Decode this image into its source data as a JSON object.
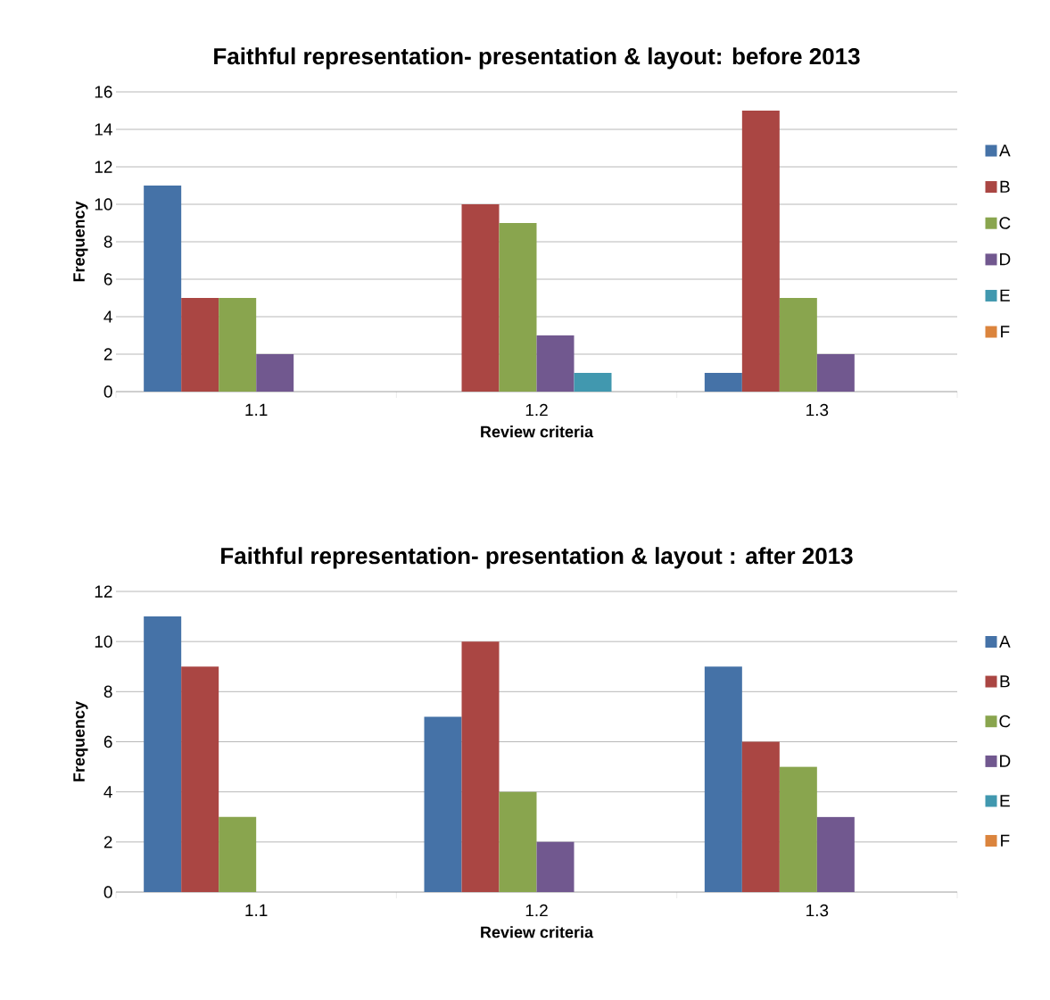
{
  "chart_data": [
    {
      "type": "bar",
      "title": "Faithful representation- presentation & layout: before 2013",
      "xlabel": "Review criteria",
      "ylabel": "Frequency",
      "categories": [
        "1.1",
        "1.2",
        "1.3"
      ],
      "ylim": [
        0,
        16
      ],
      "yticks": [
        0,
        2,
        4,
        6,
        8,
        10,
        12,
        14,
        16
      ],
      "grid": "y",
      "legend": "right",
      "series": [
        {
          "name": "A",
          "color": "#4572a7",
          "values": [
            11,
            0,
            1
          ]
        },
        {
          "name": "B",
          "color": "#aa4643",
          "values": [
            5,
            10,
            15
          ]
        },
        {
          "name": "C",
          "color": "#89a54e",
          "values": [
            5,
            9,
            5
          ]
        },
        {
          "name": "D",
          "color": "#71588f",
          "values": [
            2,
            3,
            2
          ]
        },
        {
          "name": "E",
          "color": "#4198af",
          "values": [
            0,
            1,
            0
          ]
        },
        {
          "name": "F",
          "color": "#db843d",
          "values": [
            0,
            0,
            0
          ]
        }
      ]
    },
    {
      "type": "bar",
      "title": "Faithful representation- presentation & layout : after 2013",
      "xlabel": "Review criteria",
      "ylabel": "Frequency",
      "categories": [
        "1.1",
        "1.2",
        "1.3"
      ],
      "ylim": [
        0,
        12
      ],
      "yticks": [
        0,
        2,
        4,
        6,
        8,
        10,
        12
      ],
      "grid": "y",
      "legend": "right",
      "series": [
        {
          "name": "A",
          "color": "#4572a7",
          "values": [
            11,
            7,
            9
          ]
        },
        {
          "name": "B",
          "color": "#aa4643",
          "values": [
            9,
            10,
            6
          ]
        },
        {
          "name": "C",
          "color": "#89a54e",
          "values": [
            3,
            4,
            5
          ]
        },
        {
          "name": "D",
          "color": "#71588f",
          "values": [
            0,
            2,
            3
          ]
        },
        {
          "name": "E",
          "color": "#4198af",
          "values": [
            0,
            0,
            0
          ]
        },
        {
          "name": "F",
          "color": "#db843d",
          "values": [
            0,
            0,
            0
          ]
        }
      ]
    }
  ]
}
